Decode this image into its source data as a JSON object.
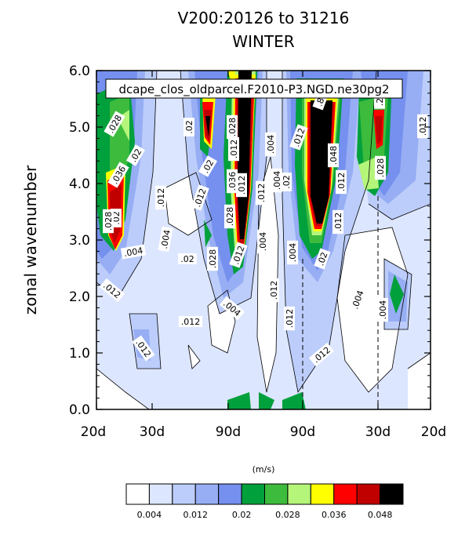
{
  "chart_data": {
    "type": "heatmap",
    "title": "V200:20126 to 31216",
    "subtitle": "WINTER",
    "case_label": "dcape_clos_oldparcel.F2010-P3.NGD.ne30pg2",
    "ylabel": "zonal wavenumber",
    "ylim": [
      0.0,
      6.0
    ],
    "y_ticks": [
      "0.0",
      "1.0",
      "2.0",
      "3.0",
      "4.0",
      "5.0",
      "6.0"
    ],
    "x_ticks": [
      "20d",
      "30d",
      "90d",
      "90d",
      "30d",
      "20d"
    ],
    "colorbar": {
      "units": "(m/s)",
      "levels": [
        "0.004",
        "0.012",
        "0.02",
        "0.028",
        "0.036",
        "0.048"
      ],
      "colors": [
        "#ffffff",
        "#dde6ff",
        "#bccdfb",
        "#97aef4",
        "#7590ee",
        "#00a03c",
        "#3dbb3d",
        "#b4f57a",
        "#ffff00",
        "#ff0000",
        "#c00000",
        "#000000"
      ]
    },
    "contour_labels": [
      ".028",
      ".02",
      ".036",
      ".02",
      ".028",
      ".004",
      ".012",
      ".012",
      ".004",
      ".012",
      ".02",
      ".02",
      ".012",
      ".02",
      ".028",
      ".028",
      ".036",
      ".028",
      ".012",
      ".004",
      ".012",
      ".004",
      ".004",
      ".012",
      ".012",
      ".02",
      ".048",
      ".012",
      ".012",
      ".02",
      ".004",
      ".012",
      ".012",
      ".004",
      ".012",
      ".028",
      ".012",
      ".004",
      ".004",
      ".004",
      ".012",
      ".012",
      ".8",
      ".2"
    ]
  }
}
